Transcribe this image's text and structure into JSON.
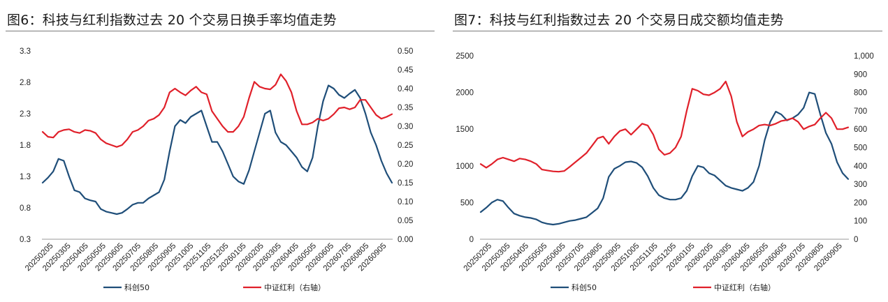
{
  "colors": {
    "blue": "#1f4e79",
    "red": "#e0202a"
  },
  "panels": [
    {
      "title": "图6：科技与红利指数过去 20 个交易日换手率均值走势"
    },
    {
      "title": "图7：科技与红利指数过去 20 个交易日成交额均值走势"
    }
  ],
  "chart_data": [
    {
      "type": "line",
      "title": "图6：科技与红利指数过去 20 个交易日换手率均值走势",
      "x_labels": [
        "20250205",
        "20250305",
        "20250405",
        "20250505",
        "20250605",
        "20250705",
        "20250805",
        "20250905",
        "20251005",
        "20251105",
        "20251205",
        "20260105",
        "20260205",
        "20260305",
        "20260405",
        "20260505",
        "20260605",
        "20260705",
        "20260805",
        "20260905"
      ],
      "y_left": {
        "min": 0.3,
        "max": 3.3,
        "ticks": [
          "0.3",
          "0.8",
          "1.3",
          "1.8",
          "2.3",
          "2.8",
          "3.3"
        ]
      },
      "y_right": {
        "min": 0,
        "max": 0.5,
        "ticks": [
          "0.00",
          "0.05",
          "0.10",
          "0.15",
          "0.20",
          "0.25",
          "0.30",
          "0.35",
          "0.40",
          "0.45",
          "0.50"
        ]
      },
      "series": [
        {
          "name": "科创50",
          "axis": "left",
          "color": "#1f4e79",
          "values": [
            1.2,
            1.28,
            1.38,
            1.58,
            1.55,
            1.3,
            1.08,
            1.05,
            0.95,
            0.92,
            0.9,
            0.78,
            0.74,
            0.72,
            0.7,
            0.72,
            0.78,
            0.85,
            0.88,
            0.88,
            0.95,
            1.0,
            1.05,
            1.25,
            1.7,
            2.1,
            2.2,
            2.15,
            2.25,
            2.3,
            2.35,
            2.1,
            1.85,
            1.85,
            1.7,
            1.5,
            1.3,
            1.22,
            1.18,
            1.4,
            1.7,
            2.0,
            2.3,
            2.35,
            2.0,
            1.85,
            1.8,
            1.7,
            1.6,
            1.45,
            1.38,
            1.6,
            2.1,
            2.5,
            2.75,
            2.7,
            2.6,
            2.55,
            2.62,
            2.68,
            2.55,
            2.3,
            2.0,
            1.8,
            1.55,
            1.35,
            1.2
          ]
        },
        {
          "name": "中证红利（右轴）",
          "axis": "right",
          "color": "#e0202a",
          "values": [
            0.285,
            0.272,
            0.27,
            0.285,
            0.29,
            0.292,
            0.285,
            0.282,
            0.29,
            0.288,
            0.282,
            0.265,
            0.255,
            0.25,
            0.245,
            0.25,
            0.265,
            0.285,
            0.29,
            0.3,
            0.315,
            0.32,
            0.33,
            0.35,
            0.39,
            0.4,
            0.39,
            0.382,
            0.395,
            0.405,
            0.39,
            0.385,
            0.34,
            0.32,
            0.3,
            0.285,
            0.285,
            0.3,
            0.325,
            0.375,
            0.418,
            0.405,
            0.4,
            0.398,
            0.41,
            0.438,
            0.42,
            0.39,
            0.34,
            0.305,
            0.305,
            0.31,
            0.32,
            0.315,
            0.32,
            0.332,
            0.348,
            0.35,
            0.345,
            0.35,
            0.37,
            0.37,
            0.35,
            0.33,
            0.32,
            0.325,
            0.332
          ]
        }
      ],
      "legend": [
        "科创50",
        "中证红利（右轴）"
      ]
    },
    {
      "type": "line",
      "title": "图7：科技与红利指数过去 20 个交易日成交额均值走势",
      "x_labels": [
        "20250205",
        "20250305",
        "20250405",
        "20250505",
        "20250605",
        "20250705",
        "20250805",
        "20250905",
        "20251005",
        "20251105",
        "20251205",
        "20260105",
        "20260205",
        "20260305",
        "20260405",
        "20260505",
        "20260605",
        "20260705",
        "20260805",
        "20260905"
      ],
      "y_left": {
        "min": 0,
        "max": 2500,
        "ticks": [
          "0",
          "500",
          "1000",
          "1500",
          "2000",
          "2500"
        ]
      },
      "y_right": {
        "min": 0,
        "max": 1000,
        "ticks": [
          "0",
          "100",
          "200",
          "300",
          "400",
          "500",
          "600",
          "700",
          "800",
          "900",
          "1,000"
        ]
      },
      "series": [
        {
          "name": "科创50",
          "axis": "left",
          "color": "#1f4e79",
          "values": [
            370,
            430,
            500,
            540,
            520,
            430,
            350,
            320,
            300,
            290,
            270,
            230,
            210,
            200,
            210,
            230,
            250,
            260,
            280,
            300,
            360,
            420,
            560,
            850,
            960,
            1000,
            1050,
            1060,
            1040,
            980,
            860,
            700,
            600,
            560,
            540,
            540,
            560,
            660,
            860,
            1000,
            980,
            900,
            870,
            800,
            730,
            700,
            680,
            660,
            700,
            780,
            1000,
            1350,
            1600,
            1740,
            1700,
            1620,
            1650,
            1700,
            1790,
            2000,
            1980,
            1700,
            1450,
            1300,
            1050,
            900,
            820
          ]
        },
        {
          "name": "中证红利（右轴）",
          "axis": "right",
          "color": "#e0202a",
          "values": [
            410,
            390,
            410,
            435,
            445,
            435,
            425,
            440,
            435,
            425,
            410,
            380,
            375,
            370,
            368,
            372,
            395,
            420,
            445,
            470,
            510,
            550,
            560,
            520,
            560,
            590,
            600,
            570,
            600,
            630,
            620,
            570,
            490,
            460,
            470,
            500,
            560,
            700,
            820,
            810,
            790,
            785,
            800,
            820,
            860,
            780,
            640,
            560,
            585,
            600,
            620,
            625,
            620,
            630,
            645,
            650,
            660,
            640,
            600,
            615,
            625,
            660,
            690,
            660,
            600,
            600,
            610
          ]
        }
      ],
      "legend": [
        "科创50",
        "中证红利（右轴）"
      ]
    }
  ]
}
